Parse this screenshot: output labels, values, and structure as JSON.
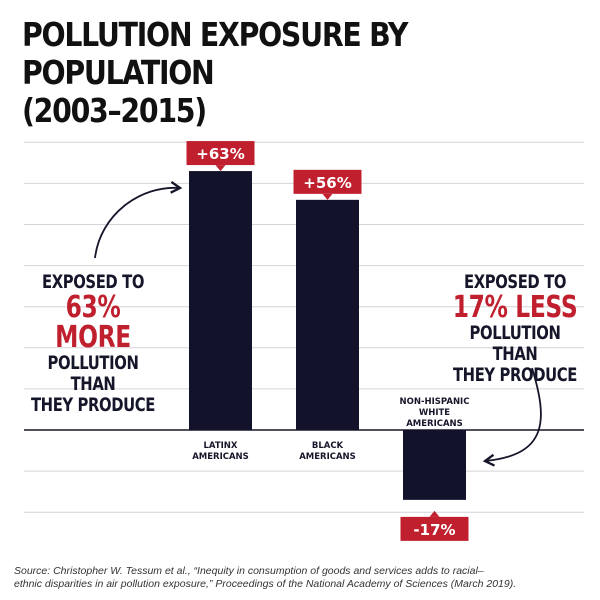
{
  "chart_data": {
    "type": "bar",
    "title": "POLLUTION EXPOSURE BY POPULATION",
    "subtitle": "(2003–2015)",
    "categories": [
      "LATINX AMERICANS",
      "BLACK AMERICANS",
      "NON-HISPANIC WHITE AMERICANS"
    ],
    "category_lines": [
      [
        "LATINX",
        "AMERICANS"
      ],
      [
        "BLACK",
        "AMERICANS"
      ],
      [
        "NON-HISPANIC",
        "WHITE",
        "AMERICANS"
      ]
    ],
    "values": [
      63,
      56,
      -17
    ],
    "value_labels": [
      "+63%",
      "+56%",
      "-17%"
    ],
    "unit": "%",
    "xlabel": "",
    "ylabel": "",
    "ylim": [
      -30,
      70
    ],
    "grid": true,
    "colors": {
      "bar": "#12122a",
      "label_box": "#c0202e",
      "accent": "#c0202e"
    }
  },
  "annotations": {
    "left": {
      "line1": "EXPOSED TO",
      "highlight": "63% MORE",
      "line3": "POLLUTION THAN",
      "line4": "THEY PRODUCE"
    },
    "right": {
      "line1": "EXPOSED TO",
      "highlight": "17% LESS",
      "line3": "POLLUTION THAN",
      "line4": "THEY PRODUCE"
    }
  },
  "source": {
    "line1": "Source: Christopher W. Tessum et al., “Inequity in consumption of goods and services adds to racial–",
    "line2": "ethnic disparities in air pollution exposure,” Proceedings of the National Academy of Sciences (March 2019)."
  }
}
